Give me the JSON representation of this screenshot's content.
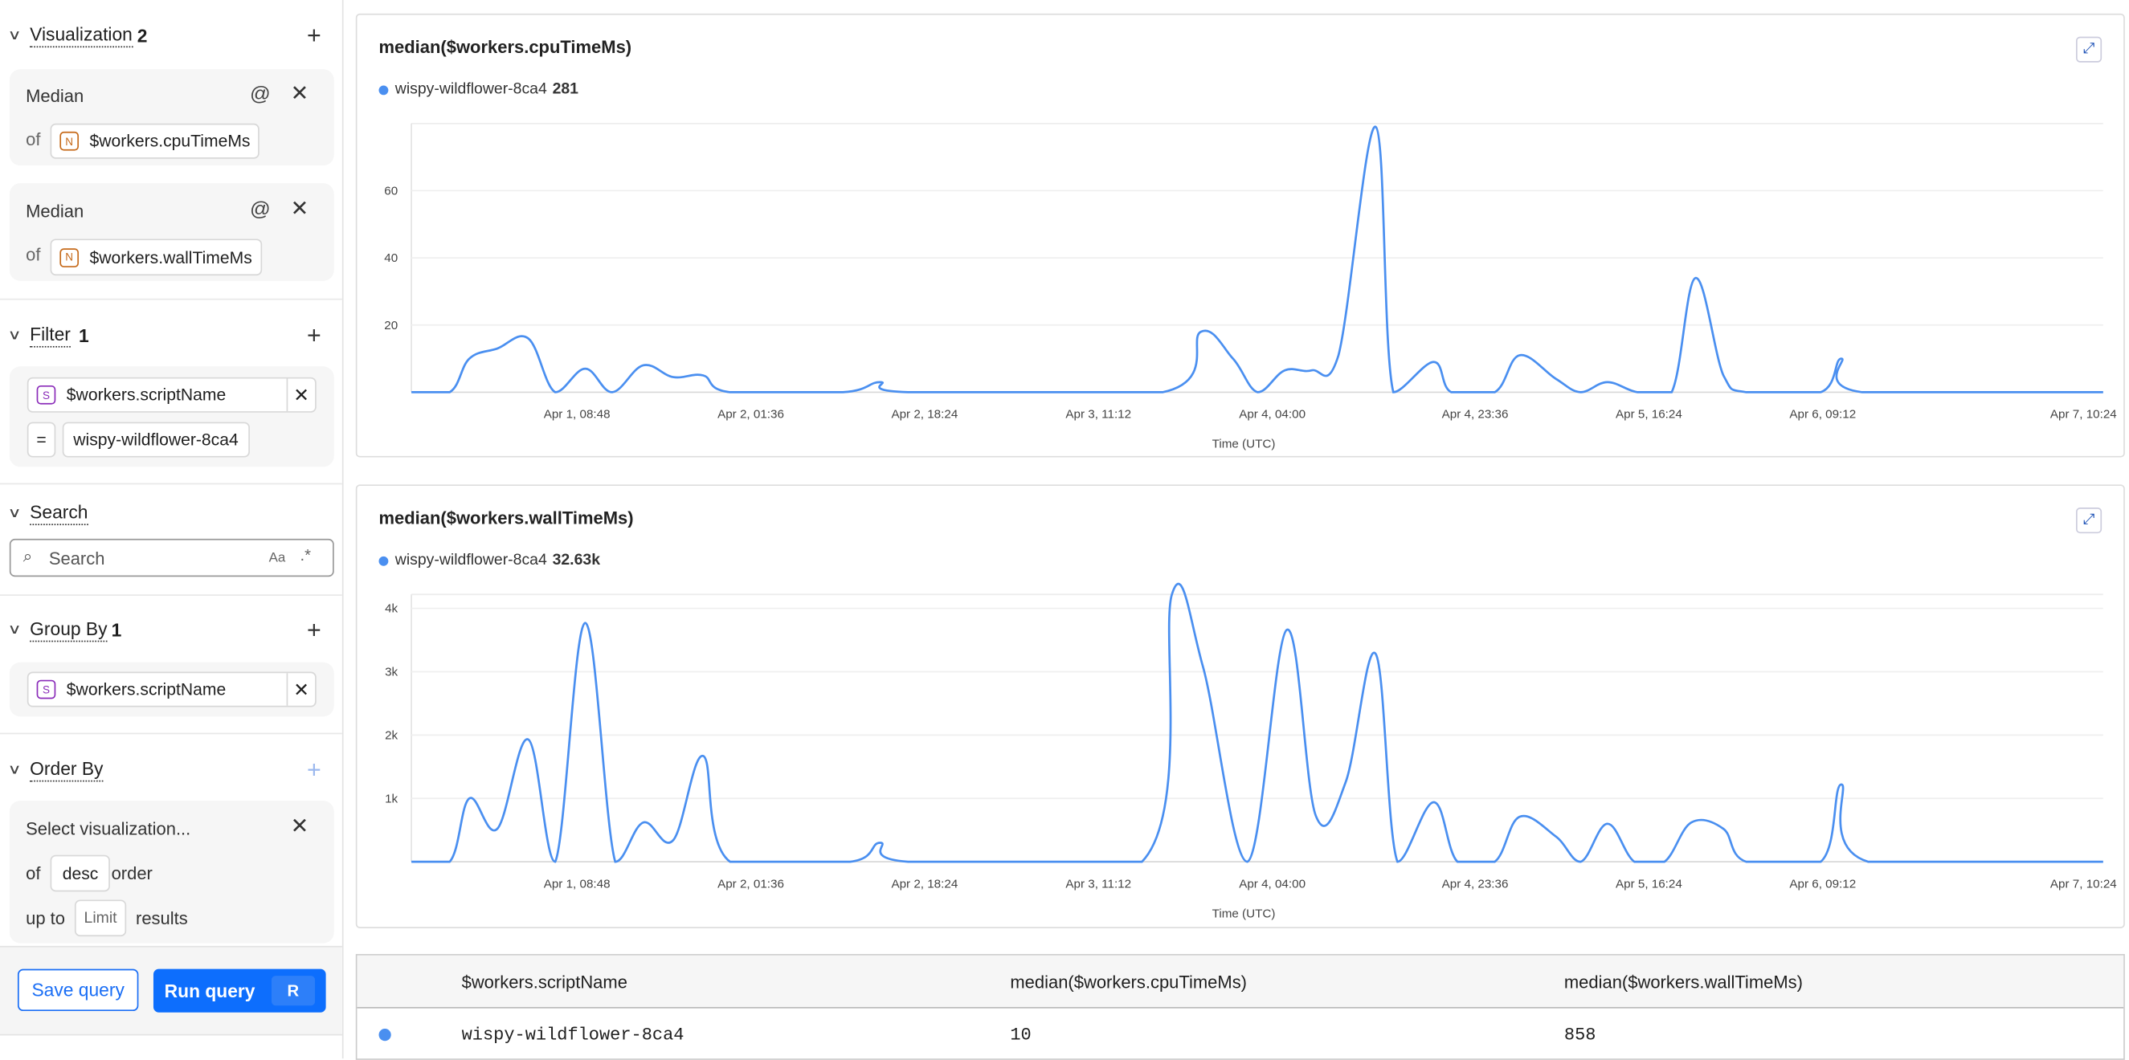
{
  "sidebar": {
    "visualization": {
      "title": "Visualization",
      "count": "2",
      "items": [
        {
          "func": "Median",
          "of": "of",
          "field": "$workers.cpuTimeMs",
          "type_badge": "N"
        },
        {
          "func": "Median",
          "of": "of",
          "field": "$workers.wallTimeMs",
          "type_badge": "N"
        }
      ]
    },
    "filter": {
      "title": "Filter",
      "count": "1",
      "field": "$workers.scriptName",
      "type_badge": "S",
      "operator": "=",
      "value": "wispy-wildflower-8ca4"
    },
    "search": {
      "title": "Search",
      "placeholder": "Search",
      "case_label": "Aa",
      "regex_label": ".*"
    },
    "group_by": {
      "title": "Group By",
      "count": "1",
      "field": "$workers.scriptName",
      "type_badge": "S"
    },
    "order_by": {
      "title": "Order By",
      "select_placeholder": "Select visualization...",
      "of": "of",
      "direction": "desc",
      "order": "order",
      "up_to": "up to",
      "limit_placeholder": "Limit",
      "results": "results"
    },
    "footer": {
      "save": "Save query",
      "run": "Run query",
      "run_shortcut": "R"
    }
  },
  "colors": {
    "series": "#4a8ff0",
    "primary": "#0d6efd"
  },
  "chart_data": [
    {
      "type": "line",
      "title": "median($workers.cpuTimeMs)",
      "legend": {
        "name": "wispy-wildflower-8ca4",
        "total": "281"
      },
      "xlabel": "Time (UTC)",
      "ylim": [
        0,
        80
      ],
      "yticks": [
        20,
        40,
        60
      ],
      "xlim": [
        "Mar 31, 16:48",
        "Apr 7, 12:18"
      ],
      "xticks": [
        "Apr 1, 08:48",
        "Apr 2, 01:36",
        "Apr 2, 18:24",
        "Apr 3, 11:12",
        "Apr 4, 04:00",
        "Apr 4, 23:36",
        "Apr 5, 16:24",
        "Apr 6, 09:12",
        "Apr 7, 10:24"
      ],
      "grid": true,
      "series": [
        {
          "name": "wispy-wildflower-8ca4",
          "points": [
            [
              "Mar 31, 16:48",
              0
            ],
            [
              "Mar 31, 20:30",
              0
            ],
            [
              "Mar 31, 22:24",
              10
            ],
            [
              "Apr 1, 01:06",
              13
            ],
            [
              "Apr 1, 04:06",
              16
            ],
            [
              "Apr 1, 06:42",
              0
            ],
            [
              "Apr 1, 09:36",
              7
            ],
            [
              "Apr 1, 12:12",
              0
            ],
            [
              "Apr 1, 15:12",
              8
            ],
            [
              "Apr 1, 18:06",
              4.5
            ],
            [
              "Apr 1, 21:00",
              5
            ],
            [
              "Apr 1, 23:36",
              0
            ],
            [
              "Apr 2, 10:30",
              0
            ],
            [
              "Apr 2, 14:06",
              3
            ],
            [
              "Apr 2, 16:48",
              0
            ],
            [
              "Apr 3, 17:24",
              0
            ],
            [
              "Apr 3, 21:06",
              18
            ],
            [
              "Apr 4, 00:12",
              10
            ],
            [
              "Apr 4, 02:36",
              0
            ],
            [
              "Apr 4, 05:12",
              6.5
            ],
            [
              "Apr 4, 07:48",
              6.5
            ],
            [
              "Apr 4, 10:24",
              11
            ],
            [
              "Apr 4, 14:00",
              79
            ],
            [
              "Apr 4, 15:42",
              0
            ],
            [
              "Apr 4, 19:36",
              9
            ],
            [
              "Apr 4, 21:18",
              0
            ],
            [
              "Apr 5, 01:30",
              0
            ],
            [
              "Apr 5, 03:54",
              11
            ],
            [
              "Apr 5, 07:24",
              4
            ],
            [
              "Apr 5, 09:48",
              0
            ],
            [
              "Apr 5, 12:24",
              3
            ],
            [
              "Apr 5, 15:18",
              0
            ],
            [
              "Apr 5, 18:36",
              0
            ],
            [
              "Apr 5, 20:54",
              34
            ],
            [
              "Apr 5, 23:36",
              5
            ],
            [
              "Apr 6, 01:48",
              0
            ],
            [
              "Apr 6, 09:00",
              0
            ],
            [
              "Apr 6, 11:00",
              10
            ],
            [
              "Apr 6, 13:00",
              0
            ],
            [
              "Apr 7, 12:18",
              0
            ]
          ]
        }
      ]
    },
    {
      "type": "line",
      "title": "median($workers.wallTimeMs)",
      "legend": {
        "name": "wispy-wildflower-8ca4",
        "total": "32.63k"
      },
      "xlabel": "Time (UTC)",
      "ylim": [
        0,
        4220
      ],
      "yticks": [
        1000,
        2000,
        3000,
        4000
      ],
      "ytick_labels": [
        "1k",
        "2k",
        "3k",
        "4k"
      ],
      "xlim": [
        "Mar 31, 16:48",
        "Apr 7, 12:18"
      ],
      "xticks": [
        "Apr 1, 08:48",
        "Apr 2, 01:36",
        "Apr 2, 18:24",
        "Apr 3, 11:12",
        "Apr 4, 04:00",
        "Apr 4, 23:36",
        "Apr 5, 16:24",
        "Apr 6, 09:12",
        "Apr 7, 10:24"
      ],
      "grid": true,
      "series": [
        {
          "name": "wispy-wildflower-8ca4",
          "points": [
            [
              "Mar 31, 16:48",
              0
            ],
            [
              "Mar 31, 20:30",
              0
            ],
            [
              "Mar 31, 22:24",
              1000
            ],
            [
              "Apr 1, 01:06",
              520
            ],
            [
              "Apr 1, 04:06",
              1930
            ],
            [
              "Apr 1, 06:42",
              0
            ],
            [
              "Apr 1, 09:36",
              3770
            ],
            [
              "Apr 1, 12:30",
              0
            ],
            [
              "Apr 1, 15:12",
              620
            ],
            [
              "Apr 1, 18:06",
              340
            ],
            [
              "Apr 1, 21:00",
              1670
            ],
            [
              "Apr 1, 23:36",
              0
            ],
            [
              "Apr 2, 11:12",
              0
            ],
            [
              "Apr 2, 14:06",
              300
            ],
            [
              "Apr 2, 16:48",
              0
            ],
            [
              "Apr 3, 15:24",
              0
            ],
            [
              "Apr 3, 18:18",
              4220
            ],
            [
              "Apr 3, 21:18",
              3080
            ],
            [
              "Apr 4, 01:36",
              0
            ],
            [
              "Apr 4, 05:24",
              3660
            ],
            [
              "Apr 4, 08:12",
              730
            ],
            [
              "Apr 4, 11:06",
              1260
            ],
            [
              "Apr 4, 14:00",
              3280
            ],
            [
              "Apr 4, 16:06",
              0
            ],
            [
              "Apr 4, 19:36",
              940
            ],
            [
              "Apr 4, 21:54",
              0
            ],
            [
              "Apr 5, 01:30",
              0
            ],
            [
              "Apr 5, 03:54",
              710
            ],
            [
              "Apr 5, 07:24",
              400
            ],
            [
              "Apr 5, 09:48",
              0
            ],
            [
              "Apr 5, 12:24",
              600
            ],
            [
              "Apr 5, 15:00",
              0
            ],
            [
              "Apr 5, 17:54",
              0
            ],
            [
              "Apr 5, 20:30",
              620
            ],
            [
              "Apr 5, 23:36",
              520
            ],
            [
              "Apr 6, 01:48",
              0
            ],
            [
              "Apr 6, 09:00",
              0
            ],
            [
              "Apr 6, 11:00",
              1220
            ],
            [
              "Apr 6, 13:36",
              0
            ],
            [
              "Apr 7, 12:18",
              0
            ]
          ]
        }
      ]
    }
  ],
  "table": {
    "columns": [
      "$workers.scriptName",
      "median($workers.cpuTimeMs)",
      "median($workers.wallTimeMs)"
    ],
    "rows": [
      [
        "wispy-wildflower-8ca4",
        "10",
        "858"
      ]
    ]
  }
}
